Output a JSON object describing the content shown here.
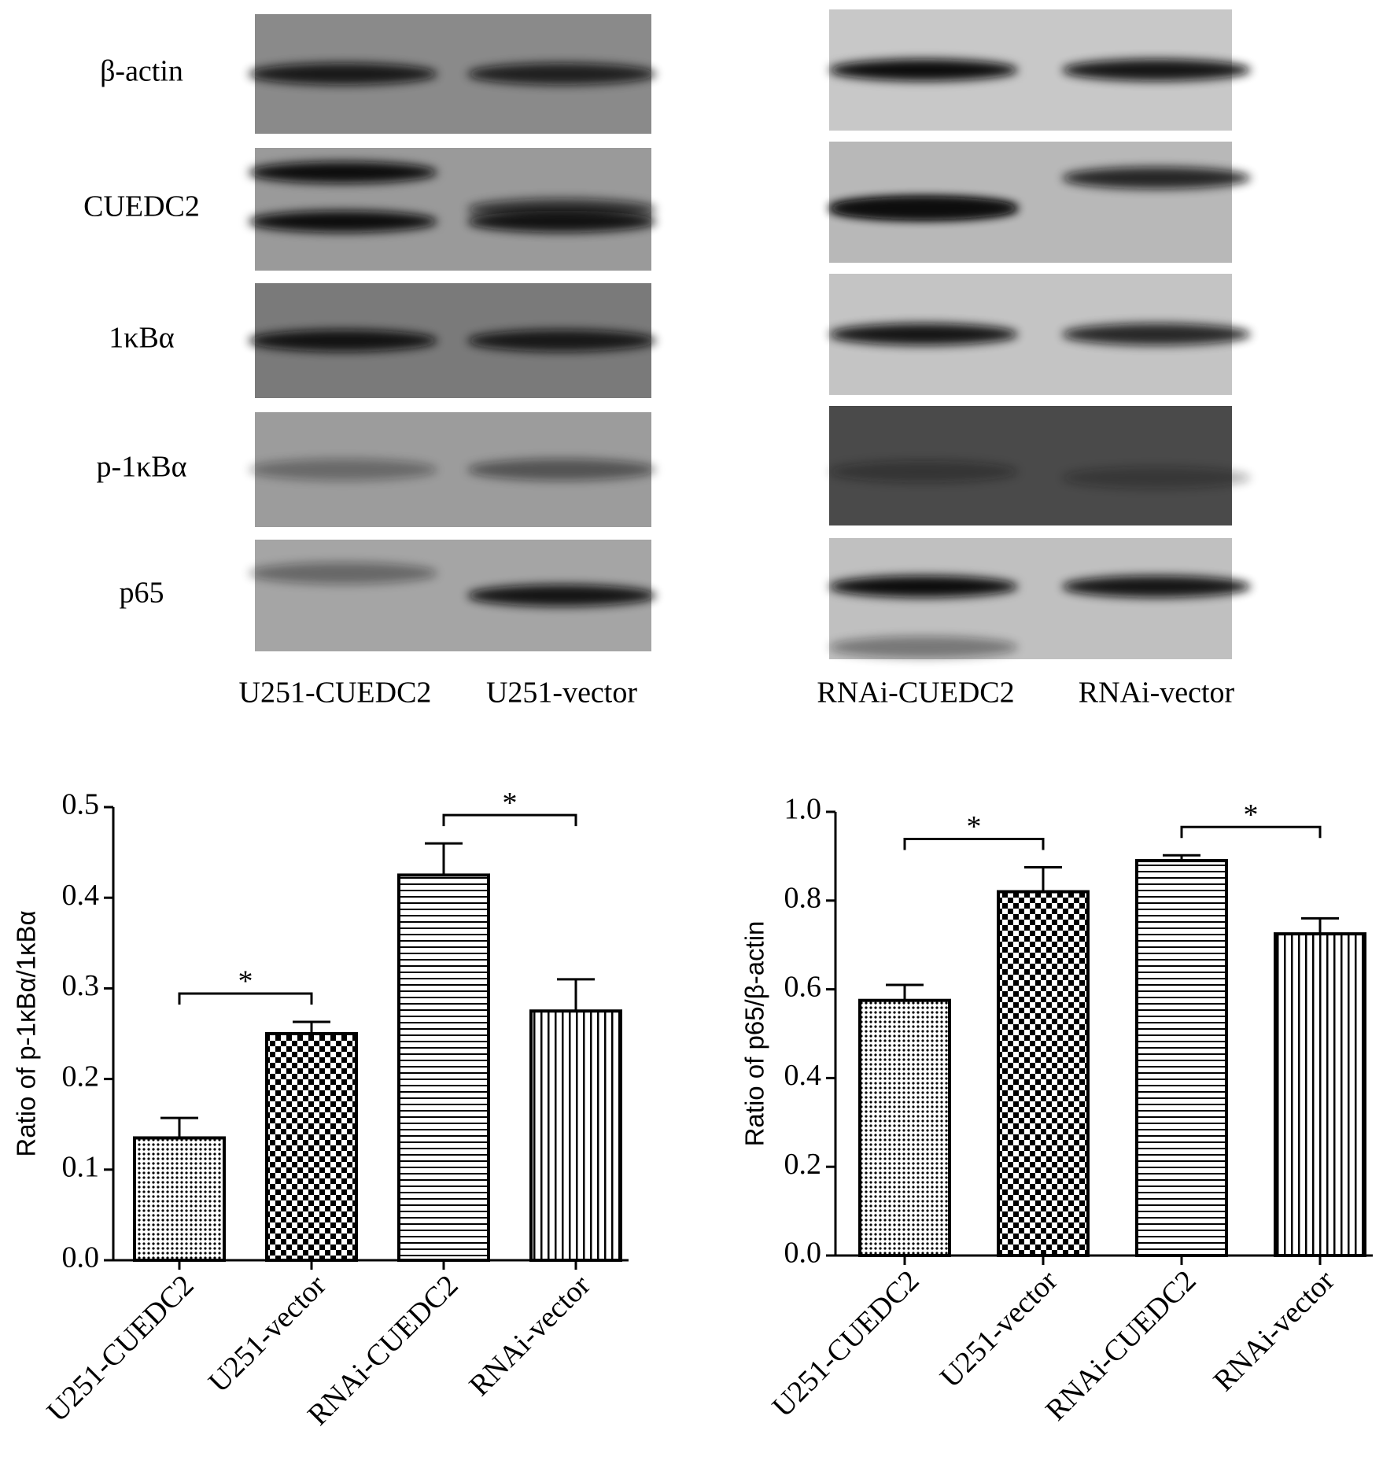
{
  "blots": [
    {
      "row_labels": [
        "β-actin",
        "CUEDC2",
        "1κBα",
        "p-1κBα",
        "p65"
      ],
      "lane_labels": [
        "U251-CUEDC2",
        "U251-vector"
      ]
    },
    {
      "lane_labels": [
        "RNAi-CUEDC2",
        "RNAi-vector"
      ]
    }
  ],
  "chart_data": [
    {
      "type": "bar",
      "ylabel": "Ratio of p-1κBα/1κBα",
      "categories": [
        "U251-CUEDC2",
        "U251-vector",
        "RNAi-CUEDC2",
        "RNAi-vector"
      ],
      "values": [
        0.135,
        0.25,
        0.425,
        0.275
      ],
      "errors": [
        0.022,
        0.013,
        0.035,
        0.035
      ],
      "color": "#000000",
      "patterns": [
        "dots",
        "checker",
        "horizontal",
        "vertical"
      ],
      "ylim": [
        0,
        0.5
      ],
      "yticks": [
        {
          "value": 0,
          "label": "0.0"
        },
        0.1,
        0.2,
        0.3,
        0.4,
        0.5
      ],
      "annotations": [
        "*",
        "*"
      ]
    },
    {
      "type": "bar",
      "ylabel": "Ratio of p65/β-actin",
      "categories": [
        "U251-CUEDC2",
        "U251-vector",
        "RNAi-CUEDC2",
        "RNAi-vector"
      ],
      "values": [
        0.575,
        0.82,
        0.89,
        0.725
      ],
      "errors": [
        0.035,
        0.055,
        0.012,
        0.035
      ],
      "color": "#000000",
      "patterns": [
        "dots",
        "checker",
        "horizontal",
        "vertical"
      ],
      "ylim": [
        0,
        1
      ],
      "yticks": [
        {
          "value": 0,
          "label": "0.0"
        },
        0.2,
        0.4,
        0.6,
        0.8,
        {
          "value": 1,
          "label": "1.0"
        }
      ],
      "annotations": [
        "*",
        "*"
      ]
    }
  ]
}
